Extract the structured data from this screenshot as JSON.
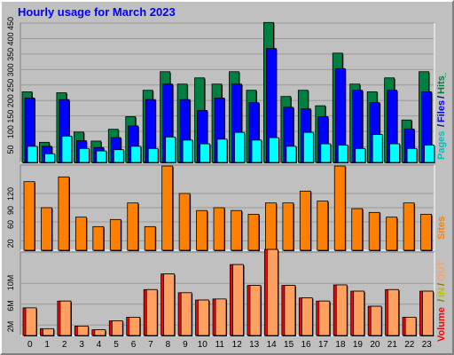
{
  "window": {
    "title": "Hourly usage for March 2023"
  },
  "colors": {
    "background": "#c0c0c0",
    "hits": "#008040",
    "files": "#0000ff",
    "pages": "#00ffff",
    "sites": "#ff8000",
    "kbytes_in": "#ff0000",
    "kbytes_out": "#ffa060",
    "title": "#0000ff"
  },
  "chart_data": [
    {
      "type": "bar",
      "title": "Hourly usage for March 2023",
      "categories": [
        "0",
        "1",
        "2",
        "3",
        "4",
        "5",
        "6",
        "7",
        "8",
        "9",
        "10",
        "11",
        "12",
        "13",
        "14",
        "15",
        "16",
        "17",
        "18",
        "19",
        "20",
        "21",
        "22",
        "23"
      ],
      "y_ticks": [
        "50",
        "100",
        "150",
        "200",
        "250",
        "300",
        "350",
        "400",
        "450"
      ],
      "ylim": [
        0,
        450
      ],
      "legend": {
        "hits": "Hits",
        "files": "Files",
        "pages": "Pages",
        "sep": "/",
        "sep2": "/",
        "trail": "_"
      },
      "series": [
        {
          "name": "Hits",
          "values": [
            228,
            65,
            225,
            98,
            69,
            107,
            148,
            233,
            293,
            253,
            273,
            253,
            293,
            233,
            452,
            213,
            233,
            183,
            353,
            253,
            228,
            273,
            137,
            293
          ]
        },
        {
          "name": "Files",
          "values": [
            208,
            52,
            203,
            70,
            48,
            80,
            118,
            203,
            253,
            203,
            168,
            208,
            253,
            193,
            368,
            178,
            173,
            148,
            303,
            233,
            193,
            233,
            108,
            228
          ]
        },
        {
          "name": "Pages",
          "values": [
            52,
            28,
            85,
            45,
            37,
            41,
            52,
            45,
            82,
            72,
            60,
            75,
            97,
            72,
            80,
            52,
            97,
            60,
            56,
            45,
            90,
            60,
            45,
            56
          ]
        }
      ]
    },
    {
      "type": "bar",
      "categories": [
        "0",
        "1",
        "2",
        "3",
        "4",
        "5",
        "6",
        "7",
        "8",
        "9",
        "10",
        "11",
        "12",
        "13",
        "14",
        "15",
        "16",
        "17",
        "18",
        "19",
        "20",
        "21",
        "22",
        "23"
      ],
      "y_ticks": [
        "20",
        "60",
        "90",
        "120"
      ],
      "ylim": [
        0,
        180
      ],
      "legend": {
        "sites": "Sites"
      },
      "series": [
        {
          "name": "Sites",
          "values": [
            145,
            90,
            155,
            70,
            50,
            65,
            100,
            50,
            178,
            120,
            84,
            90,
            84,
            76,
            100,
            100,
            125,
            104,
            178,
            88,
            80,
            70,
            100,
            76
          ]
        }
      ]
    },
    {
      "type": "bar",
      "categories": [
        "0",
        "1",
        "2",
        "3",
        "4",
        "5",
        "6",
        "7",
        "8",
        "9",
        "10",
        "11",
        "12",
        "13",
        "14",
        "15",
        "16",
        "17",
        "18",
        "19",
        "20",
        "21",
        "22",
        "23"
      ],
      "y_ticks": [
        "2M",
        "6M",
        "10M"
      ],
      "ylim": [
        0,
        16
      ],
      "legend": {
        "volume": "Volume",
        "sep1": "/",
        "in": "IN",
        "sep2": "/",
        "out": "OUT"
      },
      "series": [
        {
          "name": "Volume",
          "values": [
            5.3,
            1.3,
            6.6,
            1.8,
            1.1,
            2.8,
            3.5,
            8.8,
            11.8,
            8.2,
            6.8,
            7.0,
            13.6,
            9.6,
            16.5,
            9.6,
            7.2,
            6.6,
            9.7,
            8.5,
            5.6,
            8.8,
            3.5,
            8.5
          ]
        }
      ]
    }
  ]
}
